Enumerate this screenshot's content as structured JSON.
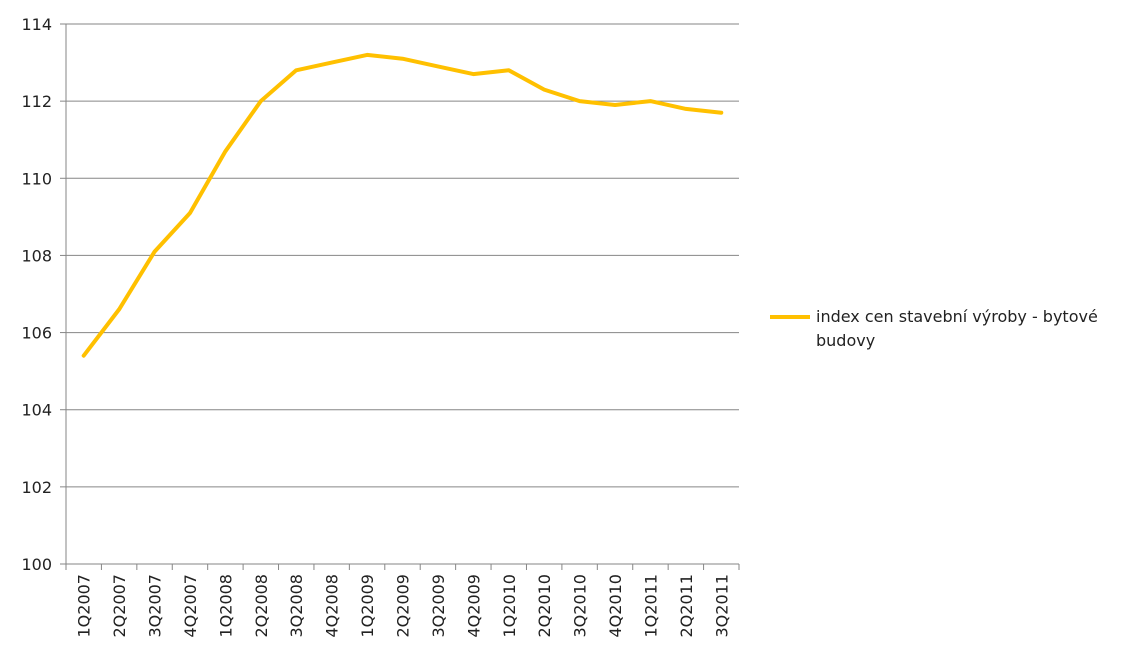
{
  "chart_data": {
    "type": "line",
    "categories": [
      "1Q2007",
      "2Q2007",
      "3Q2007",
      "4Q2007",
      "1Q2008",
      "2Q2008",
      "3Q2008",
      "4Q2008",
      "1Q2009",
      "2Q2009",
      "3Q2009",
      "4Q2009",
      "1Q2010",
      "2Q2010",
      "3Q2010",
      "4Q2010",
      "1Q2011",
      "2Q2011",
      "3Q2011"
    ],
    "series": [
      {
        "name": "index cen stavební výroby - bytové budovy",
        "values": [
          105.4,
          106.6,
          108.1,
          109.1,
          110.7,
          112.0,
          112.8,
          113.0,
          113.2,
          113.1,
          112.9,
          112.7,
          112.8,
          112.3,
          112.0,
          111.9,
          112.0,
          111.8,
          111.7
        ]
      }
    ],
    "ylim": [
      100,
      114
    ],
    "yticks": [
      100,
      102,
      104,
      106,
      108,
      110,
      112,
      114
    ],
    "grid": "horizontal",
    "legend_position": "right",
    "colors": {
      "series": "#FFC000",
      "grid": "#868686",
      "axis": "#868686"
    }
  }
}
